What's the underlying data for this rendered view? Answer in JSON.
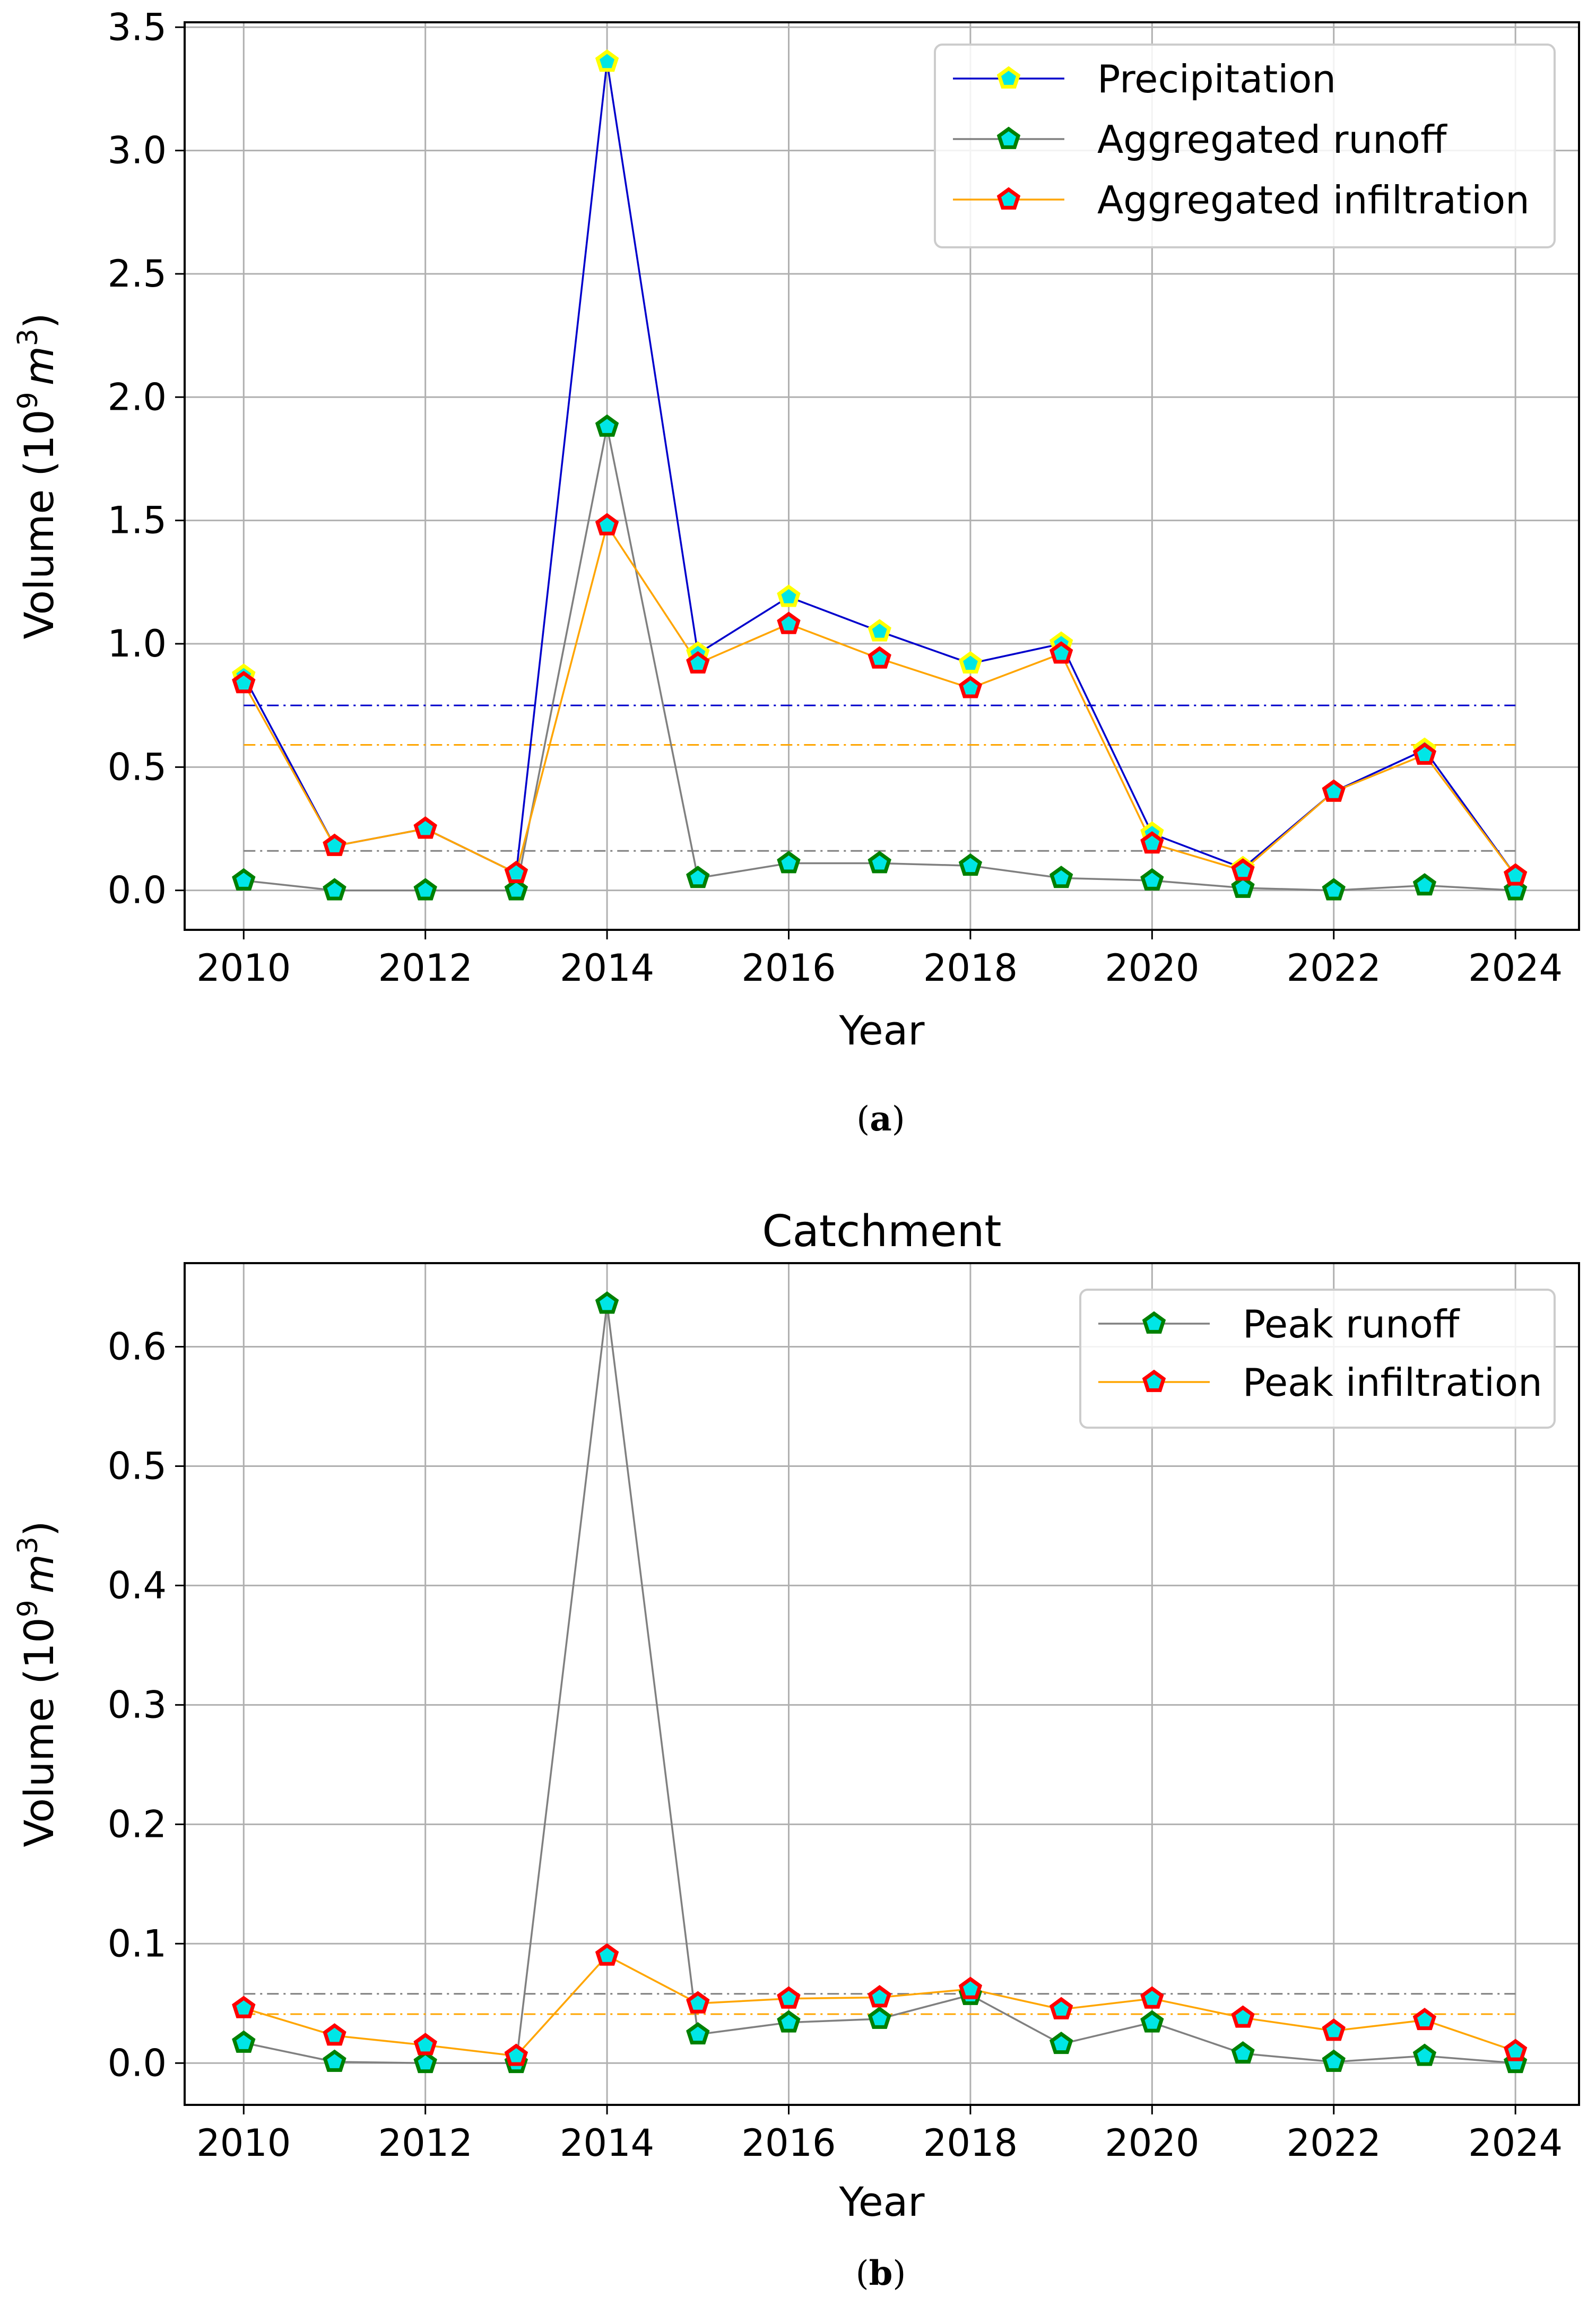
{
  "chart_data": [
    {
      "type": "line",
      "title": "",
      "caption_letter": "a",
      "xlabel": "Year",
      "ylabel": "Volume  (10",
      "ylabel_exp": "9",
      "ylabel_unit": "m",
      "ylabel_unit_exp": "3",
      "ylabel_close": ")",
      "x": [
        2010,
        2011,
        2012,
        2013,
        2014,
        2015,
        2016,
        2017,
        2018,
        2019,
        2020,
        2021,
        2022,
        2023,
        2024
      ],
      "xlim": [
        2009.35,
        2024.7
      ],
      "ylim": [
        -0.16,
        3.52
      ],
      "xticks": [
        2010,
        2012,
        2014,
        2016,
        2018,
        2020,
        2022,
        2024
      ],
      "yticks": [
        0.0,
        0.5,
        1.0,
        1.5,
        2.0,
        2.5,
        3.0,
        3.5
      ],
      "ytick_labels": [
        "0.0",
        "0.5",
        "1.0",
        "1.5",
        "2.0",
        "2.5",
        "3.0",
        "3.5"
      ],
      "grid": true,
      "legend_position": "top-right",
      "series": [
        {
          "name": "Precipitation",
          "color": "#0000cc",
          "marker_face": "#00e6e6",
          "marker_edge": "#ffff00",
          "values": [
            0.87,
            0.18,
            0.25,
            0.07,
            3.36,
            0.96,
            1.19,
            1.05,
            0.92,
            1.0,
            0.23,
            0.09,
            0.4,
            0.57,
            0.06
          ],
          "mean": 0.75
        },
        {
          "name": "Aggregated runoff",
          "color": "#808080",
          "marker_face": "#00e6e6",
          "marker_edge": "#008000",
          "values": [
            0.04,
            0.0,
            0.0,
            0.0,
            1.88,
            0.05,
            0.11,
            0.11,
            0.1,
            0.05,
            0.04,
            0.01,
            0.0,
            0.02,
            0.0
          ],
          "mean": 0.16
        },
        {
          "name": "Aggregated infiltration",
          "color": "#ffa500",
          "marker_face": "#00e6e6",
          "marker_edge": "#ff0000",
          "values": [
            0.84,
            0.18,
            0.25,
            0.07,
            1.48,
            0.92,
            1.08,
            0.94,
            0.82,
            0.96,
            0.19,
            0.08,
            0.4,
            0.55,
            0.06
          ],
          "mean": 0.59
        }
      ]
    },
    {
      "type": "line",
      "title": "Catchment",
      "caption_letter": "b",
      "xlabel": "Year",
      "ylabel": "Volume (10",
      "ylabel_exp": "9",
      "ylabel_unit": "m",
      "ylabel_unit_exp": "3",
      "ylabel_close": ")",
      "x": [
        2010,
        2011,
        2012,
        2013,
        2014,
        2015,
        2016,
        2017,
        2018,
        2019,
        2020,
        2021,
        2022,
        2023,
        2024
      ],
      "xlim": [
        2009.35,
        2024.7
      ],
      "ylim": [
        -0.035,
        0.67
      ],
      "xticks": [
        2010,
        2012,
        2014,
        2016,
        2018,
        2020,
        2022,
        2024
      ],
      "yticks": [
        0.0,
        0.1,
        0.2,
        0.3,
        0.4,
        0.5,
        0.6
      ],
      "ytick_labels": [
        "0.0",
        "0.1",
        "0.2",
        "0.3",
        "0.4",
        "0.5",
        "0.6"
      ],
      "grid": true,
      "legend_position": "top-right",
      "series": [
        {
          "name": "Peak runoff",
          "color": "#808080",
          "marker_face": "#00e6e6",
          "marker_edge": "#008000",
          "values": [
            0.017,
            0.001,
            0.0,
            0.0,
            0.636,
            0.024,
            0.034,
            0.037,
            0.057,
            0.016,
            0.034,
            0.008,
            0.001,
            0.006,
            0.0
          ],
          "mean": 0.058
        },
        {
          "name": "Peak infiltration",
          "color": "#ffa500",
          "marker_face": "#00e6e6",
          "marker_edge": "#ff0000",
          "values": [
            0.046,
            0.023,
            0.015,
            0.006,
            0.09,
            0.05,
            0.054,
            0.055,
            0.062,
            0.045,
            0.054,
            0.038,
            0.027,
            0.036,
            0.01
          ],
          "mean": 0.041
        }
      ]
    }
  ]
}
